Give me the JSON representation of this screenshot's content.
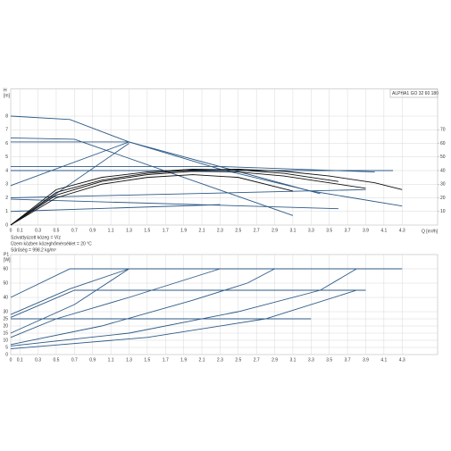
{
  "chart_data": [
    {
      "type": "line",
      "title": "ALPHA1 GO 32 60 180",
      "y_label": "H",
      "y_unit": "[m]",
      "x_label": "Q [m³/h]",
      "notes": [
        "Szivattyúzott közeg = Víz",
        "Üzem közben közeghőmérséklet = 20 °C",
        "Sűrűség = 998.2 kg/m³"
      ],
      "xlim": [
        0,
        4.69
      ],
      "xticks": [
        0,
        0.1,
        0.3,
        0.5,
        0.7,
        0.9,
        1.1,
        1.3,
        1.5,
        1.7,
        1.9,
        2.1,
        2.3,
        2.5,
        2.7,
        2.9,
        3.1,
        3.3,
        3.5,
        3.7,
        3.9,
        4.1,
        4.3
      ],
      "ylim": [
        0,
        10
      ],
      "yticks": [
        0,
        1,
        2,
        3,
        4,
        5,
        6,
        7,
        8
      ],
      "y2lim": [
        0,
        100
      ],
      "y2ticks": [
        10,
        20,
        30,
        40,
        50,
        60,
        70
      ],
      "grid": true,
      "series": [
        {
          "color": "#2e5a87",
          "x": [
            0,
            0.65,
            1.3,
            2.3,
            3.3,
            4.3
          ],
          "values": [
            8,
            7.75,
            6.1,
            4.1,
            2.5,
            1.4
          ]
        },
        {
          "color": "#2e5a87",
          "x": [
            0,
            0.7,
            3.1
          ],
          "values": [
            6.4,
            6.3,
            0.7
          ]
        },
        {
          "color": "#2e5a87",
          "x": [
            0,
            1.3,
            3.4
          ],
          "values": [
            6.1,
            6.1,
            2.3
          ]
        },
        {
          "color": "#2e5a87",
          "x": [
            0,
            1.3
          ],
          "values": [
            0,
            6.0
          ]
        },
        {
          "color": "#2e5a87",
          "x": [
            0,
            1.3
          ],
          "values": [
            2.9,
            6.1
          ]
        },
        {
          "color": "#2e5a87",
          "x": [
            0,
            2.3,
            4.0
          ],
          "values": [
            4.3,
            4.3,
            3.9
          ]
        },
        {
          "color": "#2e5a87",
          "x": [
            0,
            4.2
          ],
          "values": [
            4.0,
            4.0
          ]
        },
        {
          "color": "#2e5a87",
          "x": [
            0,
            3.9
          ],
          "values": [
            2.0,
            2.6
          ]
        },
        {
          "color": "#2e5a87",
          "x": [
            0,
            3.6
          ],
          "values": [
            1.9,
            1.2
          ]
        },
        {
          "color": "#2e5a87",
          "x": [
            0,
            2.3
          ],
          "values": [
            1.0,
            1.5
          ]
        },
        {
          "color": "#111111",
          "axis": "y2",
          "x": [
            0,
            0.5,
            1,
            1.5,
            2,
            2.5,
            3,
            3.5,
            4,
            4.3
          ],
          "values": [
            0,
            24,
            33,
            38,
            40.5,
            41,
            39.5,
            36,
            31,
            26
          ]
        },
        {
          "color": "#111111",
          "axis": "y2",
          "x": [
            0,
            0.5,
            1,
            1.5,
            2,
            2.5,
            3,
            3.4,
            3.6
          ],
          "values": [
            0,
            26,
            35,
            39,
            41,
            40.5,
            38,
            34,
            32
          ]
        },
        {
          "color": "#111111",
          "axis": "y2",
          "x": [
            0,
            0.5,
            1,
            1.5,
            2,
            2.5,
            3.0,
            3.9
          ],
          "values": [
            0,
            22,
            32,
            37,
            39.5,
            39,
            36,
            27
          ]
        },
        {
          "color": "#111111",
          "axis": "y2",
          "x": [
            0,
            0.5,
            1,
            1.5,
            2,
            2.5,
            3.1
          ],
          "values": [
            0,
            20,
            30,
            35,
            37,
            35,
            25
          ]
        }
      ]
    },
    {
      "type": "line",
      "y_label": "P1",
      "y_unit": "[W]",
      "xlim": [
        0,
        4.69
      ],
      "xticks": [
        0,
        0.1,
        0.3,
        0.5,
        0.7,
        0.9,
        1.1,
        1.3,
        1.5,
        1.7,
        1.9,
        2.1,
        2.3,
        2.5,
        2.7,
        2.9,
        3.1,
        3.3,
        3.5,
        3.7,
        3.9,
        4.1,
        4.3
      ],
      "ylim": [
        0,
        70
      ],
      "yticks": [
        0,
        5,
        10,
        15,
        20,
        25,
        30,
        40,
        50,
        60
      ],
      "grid": true,
      "series": [
        {
          "color": "#2e5a87",
          "x": [
            0,
            0.65,
            4.3
          ],
          "values": [
            40,
            60,
            60
          ]
        },
        {
          "color": "#2e5a87",
          "x": [
            0,
            0.65,
            1.3
          ],
          "values": [
            28,
            46,
            60
          ]
        },
        {
          "color": "#2e5a87",
          "x": [
            0,
            0.7,
            3.9
          ],
          "values": [
            26,
            45,
            45
          ]
        },
        {
          "color": "#2e5a87",
          "x": [
            0,
            0.5,
            1.3,
            2.3
          ],
          "values": [
            12,
            25,
            40,
            60
          ]
        },
        {
          "color": "#2e5a87",
          "x": [
            0,
            1,
            2,
            2.6,
            2.9
          ],
          "values": [
            7,
            20,
            38,
            50,
            60
          ]
        },
        {
          "color": "#2e5a87",
          "x": [
            0,
            1.3,
            2.5,
            3.4,
            3.8
          ],
          "values": [
            6,
            15,
            30,
            45,
            60
          ]
        },
        {
          "color": "#2e5a87",
          "x": [
            0,
            1.5,
            2.8,
            3.8
          ],
          "values": [
            4,
            12,
            25,
            45
          ]
        },
        {
          "color": "#2e5a87",
          "x": [
            0,
            3.3
          ],
          "values": [
            25,
            25
          ]
        },
        {
          "color": "#2e5a87",
          "x": [
            0,
            0.7,
            1.3
          ],
          "values": [
            15,
            35,
            60
          ]
        }
      ]
    }
  ]
}
